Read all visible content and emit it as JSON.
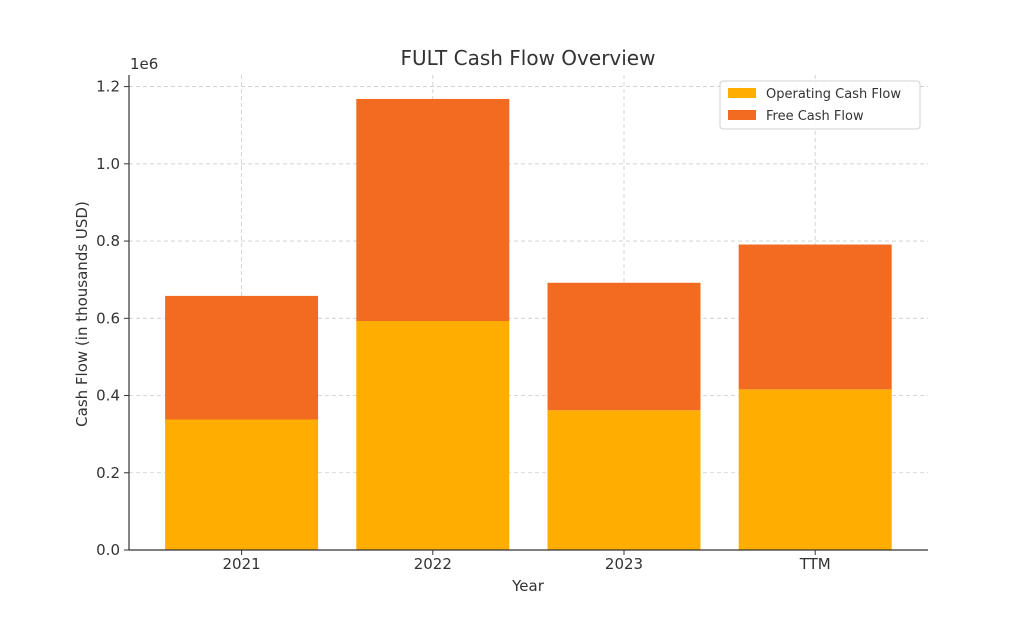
{
  "chart_data": {
    "type": "bar",
    "stacked": true,
    "title": "FULT Cash Flow Overview",
    "xlabel": "Year",
    "ylabel": "Cash Flow (in thousands USD)",
    "y_offset_label": "1e6",
    "categories": [
      "2021",
      "2022",
      "2023",
      "TTM"
    ],
    "series": [
      {
        "name": "Operating Cash Flow",
        "color": "#FFAE00",
        "values": [
          338000,
          593000,
          362000,
          416000
        ]
      },
      {
        "name": "Free Cash Flow",
        "color": "#F26B21",
        "values": [
          320000,
          575000,
          330000,
          375000
        ]
      }
    ],
    "ylim": [
      0,
      1200000
    ],
    "yticks": [
      0,
      200000,
      400000,
      600000,
      800000,
      1000000,
      1200000
    ],
    "ytick_labels": [
      "0.0",
      "0.2",
      "0.4",
      "0.6",
      "0.8",
      "1.0",
      "1.2"
    ],
    "grid": true,
    "legend_position": "top-right"
  }
}
